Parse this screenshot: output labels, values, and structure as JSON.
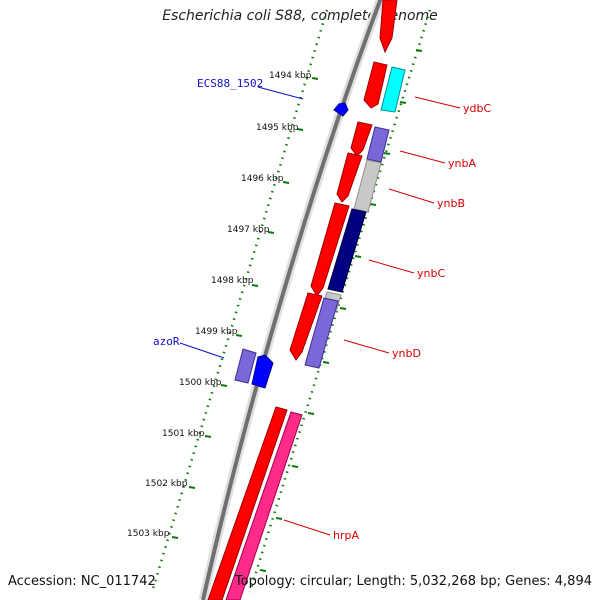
{
  "title": "Escherichia coli S88, complete genome",
  "footer": {
    "accession": "Accession: NC_011742",
    "summary": "Topology: circular; Length: 5,032,268 bp; Genes: 4,894"
  },
  "scale_labels": [
    "1494 kbp",
    "1495 kbp",
    "1496 kbp",
    "1497 kbp",
    "1498 kbp",
    "1499 kbp",
    "1500 kbp",
    "1501 kbp",
    "1502 kbp",
    "1503 kbp"
  ],
  "gene_labels": {
    "ecs": "ECS88_1502",
    "azor": "azoR",
    "ydbc": "ydbC",
    "ynba": "ynbA",
    "ynbb": "ynbB",
    "ynbc": "ynbC",
    "ynbd": "ynbD",
    "hrpa": "hrpA"
  },
  "colors": {
    "cds_red": "#ff0000",
    "cyan": "#00ffff",
    "lavender": "#7b68d8",
    "grey": "#c8c8c8",
    "navy": "#000080",
    "blue": "#0000ff",
    "pink": "#ff2a8a",
    "dot_green": "#0a7a0a",
    "label_red": "#d40000",
    "label_blue": "#1010c8"
  }
}
